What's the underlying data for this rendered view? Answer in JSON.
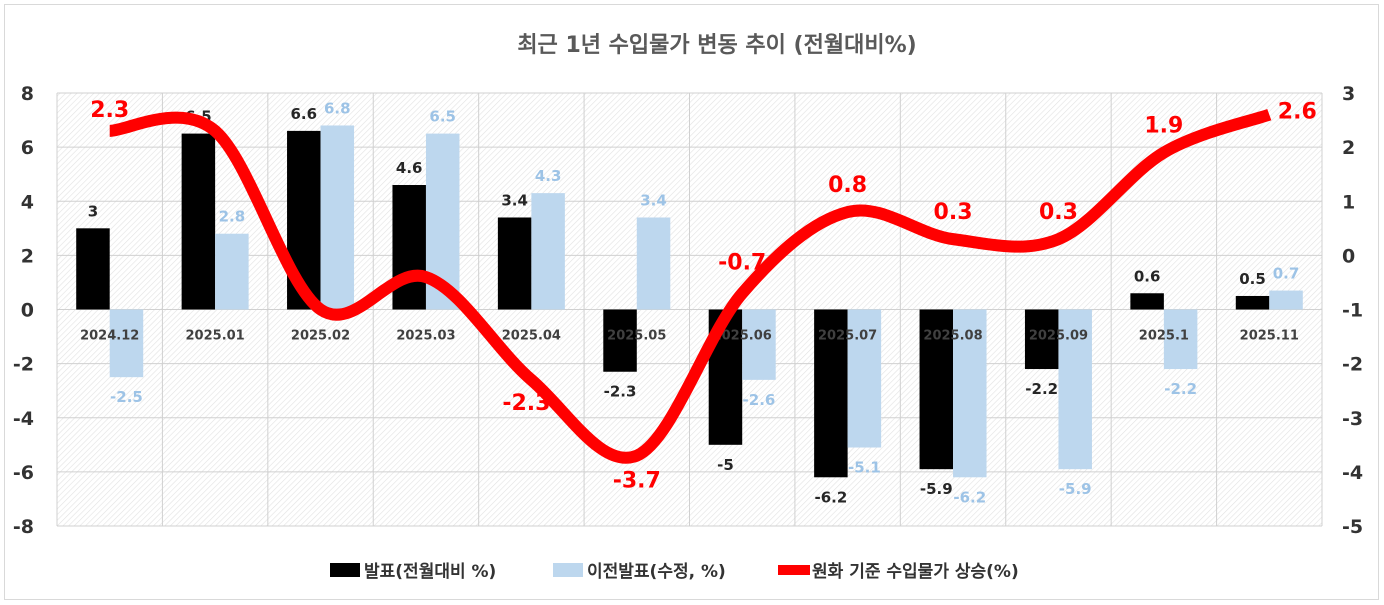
{
  "chart_data": {
    "type": "bar+line",
    "title": "최근 1년 수입물가 변동 추이 (전월대비%)",
    "categories": [
      "2024.12",
      "2025.01",
      "2025.02",
      "2025.03",
      "2025.04",
      "2025.05",
      "2025.06",
      "2025.07",
      "2025.08",
      "2025.09",
      "2025.1",
      "2025.11"
    ],
    "series": [
      {
        "name": "발표(전월대비 %)",
        "kind": "bar",
        "axis": "left",
        "color": "#000000",
        "values": [
          3,
          6.5,
          6.6,
          4.6,
          3.4,
          -2.3,
          -5,
          -6.2,
          -5.9,
          -2.2,
          0.6,
          0.5
        ],
        "labels": [
          "3",
          "6.5",
          "6.6",
          "4.6",
          "3.4",
          "-2.3",
          "-5",
          "-6.2",
          "-5.9",
          "-2.2",
          "0.6",
          "0.5"
        ]
      },
      {
        "name": "이전발표(수정, %)",
        "kind": "bar",
        "axis": "left",
        "color": "#bdd7ee",
        "values": [
          -2.5,
          2.8,
          6.8,
          6.5,
          4.3,
          3.4,
          -2.6,
          -5.1,
          -6.2,
          -5.9,
          -2.2,
          0.7
        ],
        "labels": [
          "-2.5",
          "2.8",
          "6.8",
          "6.5",
          "4.3",
          "3.4",
          "-2.6",
          "-5.1",
          "-6.2",
          "-5.9",
          "-2.2",
          "0.7"
        ]
      },
      {
        "name": "원화 기준 수입물가 상승(%)",
        "kind": "line",
        "axis": "right",
        "color": "#ff0000",
        "values": [
          2.3,
          2.3,
          -1.0,
          -0.4,
          -2.3,
          -3.7,
          -0.7,
          0.8,
          0.3,
          0.3,
          1.9,
          2.6
        ],
        "labels": [
          "2.3",
          "",
          "",
          "",
          "-2.3",
          "-3.7",
          "-0.7",
          "0.8",
          "0.3",
          "0.3",
          "1.9",
          "2.6"
        ]
      }
    ],
    "y_left": {
      "min": -8,
      "max": 8,
      "step": 2,
      "ticks": [
        "8",
        "6",
        "4",
        "2",
        "0",
        "-2",
        "-4",
        "-6",
        "-8"
      ]
    },
    "y_right": {
      "min": -5,
      "max": 3,
      "step": 1,
      "ticks": [
        "3",
        "2",
        "1",
        "0",
        "-1",
        "-2",
        "-3",
        "-4",
        "-5"
      ]
    },
    "grid": true,
    "legend_position": "bottom"
  }
}
